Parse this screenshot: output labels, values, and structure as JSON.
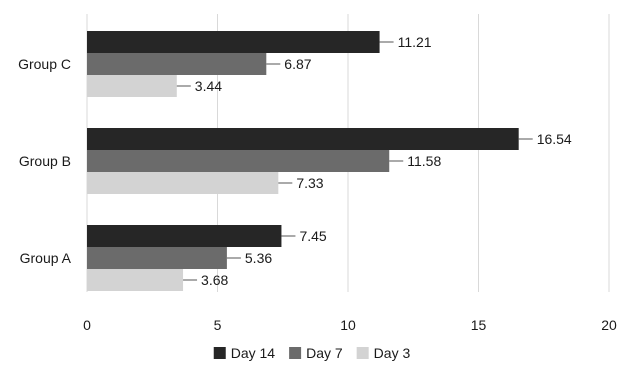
{
  "chart_data": {
    "type": "bar",
    "orientation": "horizontal",
    "categories": [
      "Group C",
      "Group B",
      "Group A"
    ],
    "series": [
      {
        "name": "Day 14",
        "color": "#262626",
        "values": [
          11.21,
          16.54,
          7.45
        ]
      },
      {
        "name": "Day 7",
        "color": "#6b6b6b",
        "values": [
          6.87,
          11.58,
          5.36
        ]
      },
      {
        "name": "Day 3",
        "color": "#d3d3d3",
        "values": [
          3.44,
          7.33,
          3.68
        ]
      }
    ],
    "xticks": [
      0,
      5,
      10,
      15,
      20
    ],
    "xlim": [
      0,
      20
    ],
    "grid": true,
    "legend": "bottom",
    "title": "",
    "xlabel": "",
    "ylabel": ""
  }
}
